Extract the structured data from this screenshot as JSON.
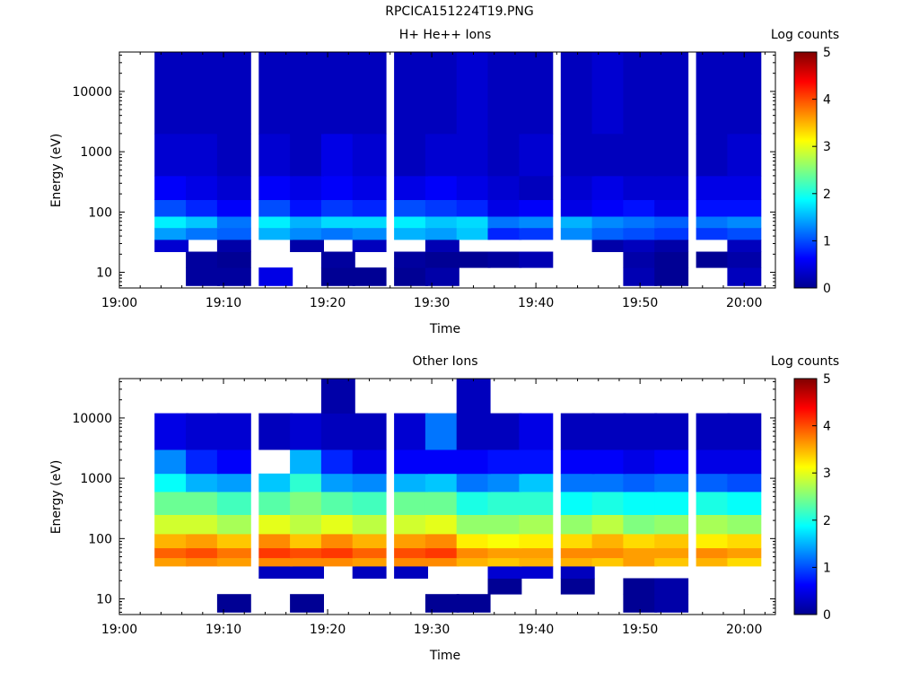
{
  "page": {
    "title": "RPCICA151224T19.PNG"
  },
  "chart_data": [
    {
      "type": "heatmap",
      "title": "H+ He++ Ions",
      "xlabel": "Time",
      "ylabel": "Energy (eV)",
      "y_scale": "log",
      "xlim": [
        "19:00",
        "20:03"
      ],
      "ylim": [
        5.5,
        45000
      ],
      "x_ticks": [
        "19:00",
        "19:10",
        "19:20",
        "19:30",
        "19:40",
        "19:50",
        "20:00"
      ],
      "y_ticks": [
        "10",
        "100",
        "1000",
        "10000"
      ],
      "colorbar": {
        "label": "Log counts",
        "range": [
          0,
          5
        ],
        "ticks": [
          "0",
          "1",
          "2",
          "3",
          "4",
          "5"
        ]
      },
      "x": [
        "19:05",
        "19:08",
        "19:11",
        "19:15",
        "19:18",
        "19:21",
        "19:24",
        "19:28",
        "19:31",
        "19:34",
        "19:37",
        "19:40",
        "19:44",
        "19:47",
        "19:50",
        "19:53",
        "19:57",
        "20:00"
      ],
      "bands": [
        {
          "energy_range": [
            6,
            12
          ],
          "values": [
            null,
            0.15,
            0.15,
            0.5,
            null,
            0.1,
            0.1,
            0.1,
            0.2,
            null,
            null,
            null,
            null,
            null,
            0.25,
            0.1,
            null,
            0.3
          ]
        },
        {
          "energy_range": [
            12,
            22
          ],
          "values": [
            null,
            0.15,
            0.1,
            null,
            null,
            0.15,
            null,
            0.15,
            0.1,
            0.1,
            0.15,
            0.25,
            null,
            null,
            0.2,
            0.1,
            0.1,
            0.2
          ]
        },
        {
          "energy_range": [
            22,
            35
          ],
          "values": [
            0.4,
            null,
            0.2,
            null,
            0.2,
            null,
            0.3,
            null,
            0.25,
            null,
            null,
            null,
            null,
            0.2,
            0.3,
            0.2,
            null,
            0.3
          ]
        },
        {
          "energy_range": [
            35,
            55
          ],
          "values": [
            1.4,
            1.2,
            1.1,
            1.5,
            1.3,
            1.2,
            1.3,
            1.5,
            1.4,
            1.6,
            0.8,
            0.9,
            1.3,
            1.1,
            1.0,
            0.9,
            0.9,
            1.0
          ]
        },
        {
          "energy_range": [
            55,
            85
          ],
          "values": [
            1.8,
            1.6,
            1.2,
            1.8,
            1.5,
            1.7,
            1.7,
            1.8,
            1.6,
            1.7,
            1.2,
            1.3,
            1.5,
            1.3,
            1.2,
            1.1,
            1.2,
            1.3
          ]
        },
        {
          "energy_range": [
            85,
            160
          ],
          "values": [
            1.0,
            0.8,
            0.6,
            1.0,
            0.7,
            0.9,
            0.8,
            1.0,
            0.9,
            0.8,
            0.5,
            0.6,
            0.5,
            0.6,
            0.7,
            0.5,
            0.7,
            0.7
          ]
        },
        {
          "energy_range": [
            160,
            400
          ],
          "values": [
            0.6,
            0.5,
            0.4,
            0.6,
            0.5,
            0.6,
            0.5,
            0.5,
            0.6,
            0.5,
            0.4,
            0.3,
            0.4,
            0.5,
            0.4,
            0.4,
            0.5,
            0.5
          ]
        },
        {
          "energy_range": [
            400,
            2000
          ],
          "values": [
            0.4,
            0.4,
            0.3,
            0.4,
            0.3,
            0.5,
            0.4,
            0.3,
            0.4,
            0.4,
            0.3,
            0.4,
            0.3,
            0.3,
            0.3,
            0.3,
            0.3,
            0.4
          ]
        },
        {
          "energy_range": [
            2000,
            45000
          ],
          "values": [
            0.3,
            0.3,
            0.3,
            0.3,
            0.3,
            0.3,
            0.3,
            0.3,
            0.3,
            0.4,
            0.3,
            0.3,
            0.3,
            0.4,
            0.3,
            0.3,
            0.3,
            0.3
          ]
        }
      ]
    },
    {
      "type": "heatmap",
      "title": "Other Ions",
      "xlabel": "Time",
      "ylabel": "Energy (eV)",
      "y_scale": "log",
      "xlim": [
        "19:00",
        "20:03"
      ],
      "ylim": [
        5.5,
        45000
      ],
      "x_ticks": [
        "19:00",
        "19:10",
        "19:20",
        "19:30",
        "19:40",
        "19:50",
        "20:00"
      ],
      "y_ticks": [
        "10",
        "100",
        "1000",
        "10000"
      ],
      "colorbar": {
        "label": "Log counts",
        "range": [
          0,
          5
        ],
        "ticks": [
          "0",
          "1",
          "2",
          "3",
          "4",
          "5"
        ]
      },
      "x": [
        "19:05",
        "19:08",
        "19:11",
        "19:15",
        "19:18",
        "19:21",
        "19:24",
        "19:28",
        "19:31",
        "19:34",
        "19:37",
        "19:40",
        "19:44",
        "19:47",
        "19:50",
        "19:53",
        "19:57",
        "20:00"
      ],
      "bands": [
        {
          "energy_range": [
            6,
            12
          ],
          "values": [
            null,
            null,
            0.1,
            null,
            0.1,
            null,
            null,
            null,
            0.1,
            0.1,
            null,
            null,
            null,
            null,
            0.1,
            0.2,
            null,
            null
          ]
        },
        {
          "energy_range": [
            12,
            22
          ],
          "values": [
            null,
            null,
            null,
            null,
            null,
            null,
            null,
            null,
            null,
            null,
            0.1,
            null,
            0.1,
            null,
            0.1,
            0.2,
            null,
            null
          ]
        },
        {
          "energy_range": [
            22,
            35
          ],
          "values": [
            null,
            null,
            null,
            0.3,
            0.3,
            null,
            0.3,
            0.3,
            null,
            null,
            0.4,
            0.4,
            0.3,
            null,
            null,
            null,
            null,
            null
          ]
        },
        {
          "energy_range": [
            35,
            48
          ],
          "values": [
            3.6,
            3.7,
            3.6,
            3.7,
            3.7,
            3.7,
            3.6,
            3.7,
            3.7,
            3.5,
            3.4,
            3.5,
            3.5,
            3.4,
            3.6,
            3.4,
            3.5,
            3.3
          ]
        },
        {
          "energy_range": [
            48,
            70
          ],
          "values": [
            3.9,
            4.0,
            3.8,
            4.1,
            4.0,
            4.1,
            3.9,
            4.0,
            4.1,
            3.7,
            3.6,
            3.6,
            3.7,
            3.7,
            3.6,
            3.6,
            3.7,
            3.6
          ]
        },
        {
          "energy_range": [
            70,
            120
          ],
          "values": [
            3.5,
            3.6,
            3.4,
            3.7,
            3.4,
            3.7,
            3.5,
            3.6,
            3.7,
            3.2,
            3.1,
            3.2,
            3.3,
            3.5,
            3.3,
            3.4,
            3.2,
            3.3
          ]
        },
        {
          "energy_range": [
            120,
            250
          ],
          "values": [
            2.9,
            2.9,
            2.7,
            3.0,
            2.8,
            3.0,
            2.8,
            2.9,
            3.0,
            2.6,
            2.6,
            2.7,
            2.6,
            2.8,
            2.5,
            2.6,
            2.7,
            2.6
          ]
        },
        {
          "energy_range": [
            250,
            600
          ],
          "values": [
            2.4,
            2.4,
            2.2,
            2.3,
            2.5,
            2.3,
            2.2,
            2.4,
            2.4,
            2.0,
            2.1,
            2.1,
            1.9,
            2.0,
            1.9,
            1.9,
            2.0,
            1.9
          ]
        },
        {
          "energy_range": [
            600,
            1200
          ],
          "values": [
            1.9,
            1.5,
            1.4,
            1.6,
            2.1,
            1.4,
            1.3,
            1.5,
            1.6,
            1.2,
            1.3,
            1.6,
            1.2,
            1.2,
            1.1,
            1.2,
            1.1,
            1.0
          ]
        },
        {
          "energy_range": [
            1200,
            3000
          ],
          "values": [
            1.3,
            0.8,
            0.6,
            null,
            1.5,
            0.8,
            0.5,
            0.6,
            0.6,
            0.6,
            0.7,
            0.7,
            0.6,
            0.6,
            0.5,
            0.6,
            0.5,
            0.5
          ]
        },
        {
          "energy_range": [
            3000,
            12000
          ],
          "values": [
            0.5,
            0.4,
            0.4,
            0.3,
            0.4,
            0.3,
            0.3,
            0.4,
            1.2,
            0.3,
            0.3,
            0.5,
            0.3,
            0.3,
            0.3,
            0.3,
            0.3,
            0.3
          ]
        },
        {
          "energy_range": [
            12000,
            45000
          ],
          "values": [
            null,
            null,
            null,
            null,
            null,
            0.2,
            null,
            null,
            null,
            0.3,
            null,
            null,
            null,
            null,
            null,
            null,
            null,
            null
          ]
        }
      ]
    }
  ]
}
